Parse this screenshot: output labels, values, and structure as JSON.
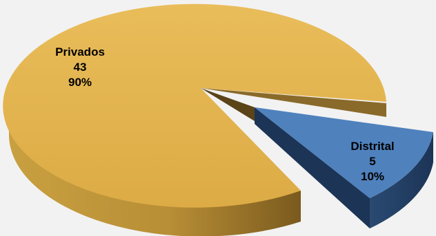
{
  "chart_data": {
    "type": "pie",
    "title": "",
    "style": "3d-exploded",
    "slices": [
      {
        "name": "Privados",
        "value": 43,
        "percent": "90%",
        "color": "#e4b450",
        "exploded": false
      },
      {
        "name": "Distrital",
        "value": 5,
        "percent": "10%",
        "color": "#4f81bd",
        "exploded": true
      }
    ],
    "legend": "none",
    "data_labels": true
  }
}
